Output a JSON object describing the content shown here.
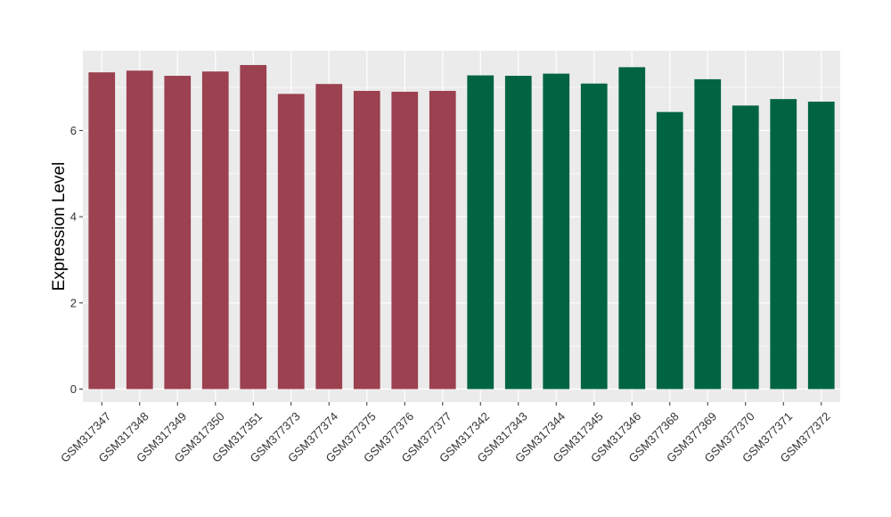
{
  "chart_data": {
    "type": "bar",
    "title": "",
    "xlabel": "",
    "ylabel": "Expression Level",
    "ylim": [
      -0.3,
      7.85
    ],
    "yticks": [
      0,
      2,
      4,
      6
    ],
    "ytick_labels": [
      "0",
      "2",
      "4",
      "6"
    ],
    "grid": true,
    "legend": "none",
    "categories": [
      "GSM317347",
      "GSM317348",
      "GSM317349",
      "GSM317350",
      "GSM317351",
      "GSM377373",
      "GSM377374",
      "GSM377375",
      "GSM377376",
      "GSM377377",
      "GSM317342",
      "GSM317343",
      "GSM317344",
      "GSM317345",
      "GSM317346",
      "GSM377368",
      "GSM377369",
      "GSM377370",
      "GSM377371",
      "GSM377372"
    ],
    "values": [
      7.35,
      7.39,
      7.27,
      7.37,
      7.52,
      6.85,
      7.08,
      6.92,
      6.9,
      6.92,
      7.28,
      7.27,
      7.32,
      7.09,
      7.47,
      6.43,
      7.19,
      6.58,
      6.73,
      6.67
    ],
    "groups": [
      0,
      0,
      0,
      0,
      0,
      0,
      0,
      0,
      0,
      0,
      1,
      1,
      1,
      1,
      1,
      1,
      1,
      1,
      1,
      1
    ],
    "group_colors": [
      "#9B4150",
      "#006442"
    ],
    "panel_background": "#EBEBEB",
    "grid_color": "#FFFFFF"
  }
}
